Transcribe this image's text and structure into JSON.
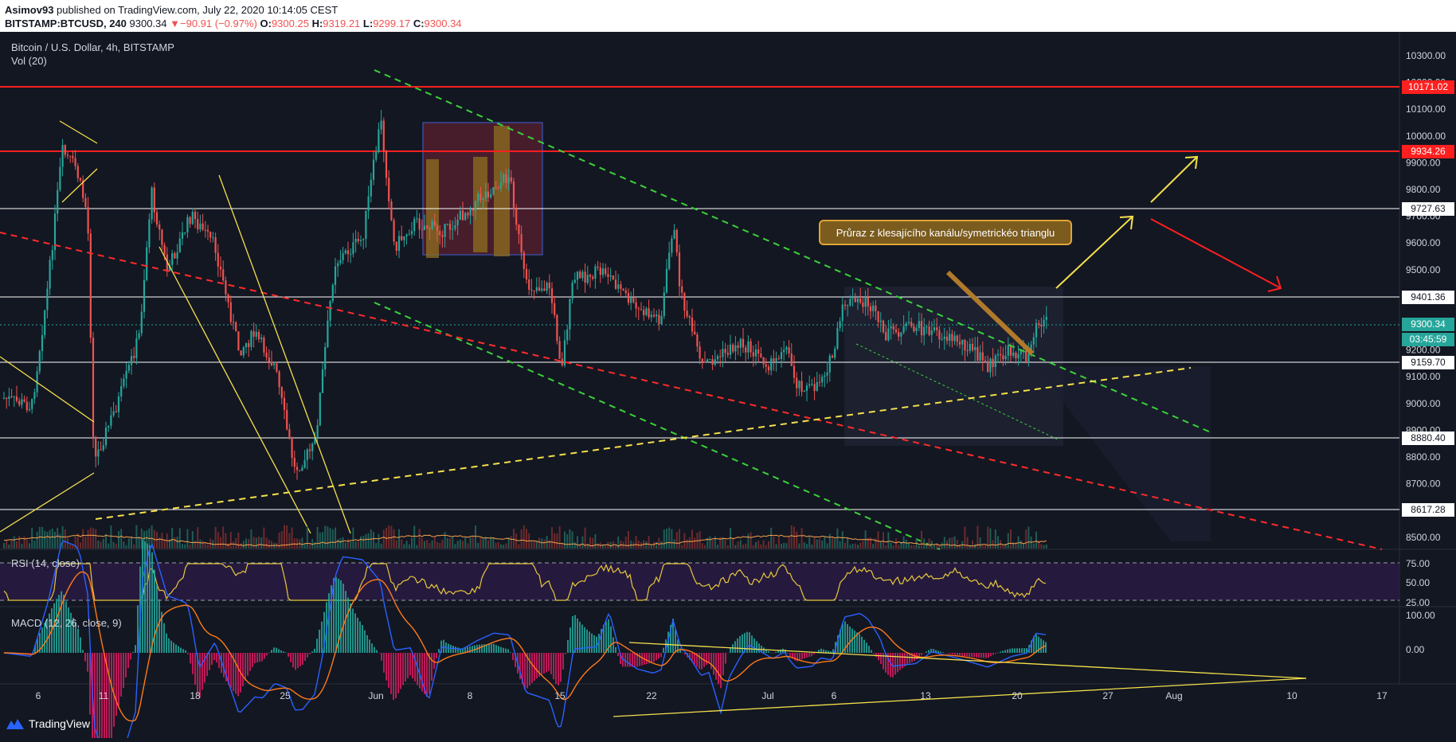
{
  "header": {
    "publisher": "Asimov93",
    "published_text": "published on TradingView.com, July 22, 2020 10:14:05 CEST",
    "symbol_code": "BITSTAMP:BTCUSD, 240",
    "last_price": "9300.34",
    "change": "−90.91 (−0.97%)",
    "ohlc": {
      "o": "9300.25",
      "h": "9319.21",
      "l": "9299.17",
      "c": "9300.34"
    }
  },
  "chart": {
    "title": "Bitcoin / U.S. Dollar, 4h, BITSTAMP",
    "volume_label": "Vol (20)",
    "rsi_label": "RSI (14, close)",
    "macd_label": "MACD (12, 26, close, 9)",
    "callout": "Průraz z klesajícího kanálu/symetrickéo trianglu",
    "colors": {
      "bg": "#131722",
      "up": "#26a69a",
      "down": "#ef5350",
      "yellow": "#f5e04b",
      "green": "#3ad13a",
      "red": "#ff1f1f"
    }
  },
  "price_axis": {
    "ticks": [
      "10300.00",
      "10200.00",
      "10100.00",
      "10000.00",
      "9900.00",
      "9800.00",
      "9700.00",
      "9600.00",
      "9500.00",
      "9400.00",
      "9300.00",
      "9200.00",
      "9100.00",
      "9000.00",
      "8900.00",
      "8800.00",
      "8700.00",
      "8600.00",
      "8500.00"
    ],
    "labels": [
      {
        "value": "10171.02",
        "type": "red"
      },
      {
        "value": "9934.26",
        "type": "red"
      },
      {
        "value": "9727.63",
        "type": "white"
      },
      {
        "value": "9401.36",
        "type": "white"
      },
      {
        "value": "9300.34",
        "type": "teal"
      },
      {
        "value": "03:45:59",
        "type": "teal"
      },
      {
        "value": "9159.70",
        "type": "white"
      },
      {
        "value": "8880.40",
        "type": "white"
      },
      {
        "value": "8617.28",
        "type": "white"
      }
    ]
  },
  "rsi_axis": [
    "75.00",
    "50.00",
    "25.00"
  ],
  "macd_axis": [
    "100.00",
    "0.00"
  ],
  "time_axis": [
    "6",
    "11",
    "18",
    "25",
    "Jun",
    "8",
    "15",
    "22",
    "Jul",
    "6",
    "13",
    "20",
    "27",
    "Aug",
    "10",
    "17"
  ],
  "footer": {
    "logo_text": "TradingView"
  }
}
